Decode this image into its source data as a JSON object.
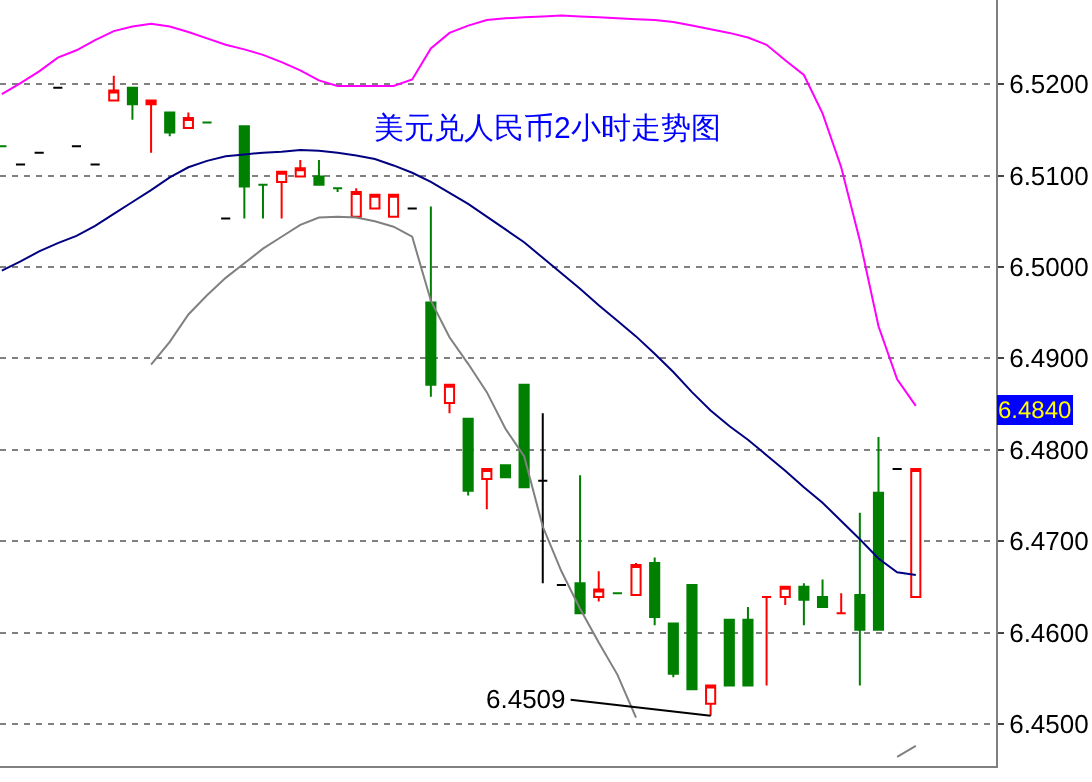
{
  "chart_data": {
    "type": "candlestick",
    "title": "美元兑人民币2小时走势图",
    "categories": [
      null,
      null,
      null,
      null,
      null,
      null,
      null,
      null,
      null,
      null,
      null,
      null,
      null,
      null,
      null,
      null,
      null,
      null,
      null,
      null,
      null,
      null,
      null,
      null,
      null,
      null,
      null,
      null,
      null,
      null,
      null,
      null,
      null,
      null,
      null,
      null,
      null,
      null,
      null,
      null,
      null,
      null,
      null,
      null,
      null,
      null,
      null,
      null,
      null,
      null
    ],
    "ohlc": [
      [
        6.5132,
        6.5132,
        6.5132,
        6.5132
      ],
      [
        6.5112,
        6.5112,
        6.5112,
        6.5112
      ],
      [
        6.5125,
        6.5125,
        6.5125,
        6.5125
      ],
      [
        6.5196,
        6.5196,
        6.5196,
        6.5196
      ],
      [
        6.5132,
        6.5132,
        6.5132,
        6.5132
      ],
      [
        6.5112,
        6.5112,
        6.5112,
        6.5112
      ],
      [
        6.5182,
        6.5209,
        6.5182,
        6.5193
      ],
      [
        6.5196,
        6.5196,
        6.5161,
        6.5178
      ],
      [
        6.5178,
        6.5182,
        6.5125,
        6.5182
      ],
      [
        6.5169,
        6.5169,
        6.5143,
        6.5147
      ],
      [
        6.5152,
        6.5169,
        6.5152,
        6.5163
      ],
      [
        6.5158,
        6.5158,
        6.5158,
        6.5158
      ],
      [
        6.5053,
        6.5053,
        6.5053,
        6.5053
      ],
      [
        6.5154,
        6.5154,
        6.5053,
        6.5088
      ],
      [
        6.509,
        6.509,
        6.5053,
        6.509
      ],
      [
        6.5093,
        6.5104,
        6.5053,
        6.5104
      ],
      [
        6.5099,
        6.5117,
        6.5099,
        6.5108
      ],
      [
        6.5099,
        6.5117,
        6.509,
        6.509
      ],
      [
        6.5086,
        6.5086,
        6.5082,
        6.5086
      ],
      [
        6.5055,
        6.5086,
        6.5055,
        6.5082
      ],
      [
        6.5064,
        6.5079,
        6.5064,
        6.5079
      ],
      [
        6.5055,
        6.5079,
        6.5055,
        6.5079
      ],
      [
        6.5064,
        6.5064,
        6.5064,
        6.5064
      ],
      [
        6.4961,
        6.5066,
        6.4858,
        6.4871
      ],
      [
        6.4851,
        6.4871,
        6.484,
        6.4871
      ],
      [
        6.4834,
        6.4834,
        6.475,
        6.4755
      ],
      [
        6.4768,
        6.4779,
        6.4735,
        6.4779
      ],
      [
        6.4783,
        6.4783,
        6.477,
        6.477
      ],
      [
        6.4871,
        6.4871,
        6.4759,
        6.4759
      ],
      [
        6.4766,
        6.484,
        6.4654,
        6.4766
      ],
      [
        6.4652,
        6.4652,
        6.4652,
        6.4652
      ],
      [
        6.4654,
        6.4772,
        6.4621,
        6.4621
      ],
      [
        6.4639,
        6.4667,
        6.4634,
        6.4647
      ],
      [
        6.4643,
        6.4643,
        6.4643,
        6.4643
      ],
      [
        6.4641,
        6.4676,
        6.4641,
        6.4674
      ],
      [
        6.4676,
        6.4682,
        6.4608,
        6.4617
      ],
      [
        6.461,
        6.461,
        6.4551,
        6.4555
      ],
      [
        6.4652,
        6.4652,
        6.4538,
        6.4538
      ],
      [
        6.4522,
        6.4542,
        6.4509,
        6.4542
      ],
      [
        6.4614,
        6.4614,
        6.4542,
        6.4542
      ],
      [
        6.4614,
        6.4628,
        6.4542,
        6.4542
      ],
      [
        6.4639,
        6.4639,
        6.4542,
        6.4639
      ],
      [
        6.4639,
        6.465,
        6.463,
        6.465
      ],
      [
        6.465,
        6.4654,
        6.4608,
        6.4636
      ],
      [
        6.4639,
        6.4658,
        6.4628,
        6.4628
      ],
      [
        6.4621,
        6.4643,
        6.4621,
        6.4621
      ],
      [
        6.4641,
        6.4731,
        6.4542,
        6.4603
      ],
      [
        6.4753,
        6.4814,
        6.4603,
        6.4603
      ],
      [
        6.4779,
        6.4779,
        6.4779,
        6.4779
      ],
      [
        6.4639,
        6.4779,
        6.4639,
        6.4779
      ]
    ],
    "colors": [
      "#008000",
      "#000000",
      "#000000",
      "#000000",
      "#000000",
      "#000000",
      "#ff0000",
      "#008000",
      "#ff0000",
      "#008000",
      "#ff0000",
      "#008000",
      "#000000",
      "#008000",
      "#008000",
      "#ff0000",
      "#ff0000",
      "#008000",
      "#008000",
      "#ff0000",
      "#ff0000",
      "#ff0000",
      "#000000",
      "#008000",
      "#ff0000",
      "#008000",
      "#ff0000",
      "#008000",
      "#008000",
      "#000000",
      "#000000",
      "#008000",
      "#ff0000",
      "#008000",
      "#ff0000",
      "#008000",
      "#008000",
      "#008000",
      "#ff0000",
      "#008000",
      "#008000",
      "#ff0000",
      "#ff0000",
      "#008000",
      "#008000",
      "#ff0000",
      "#008000",
      "#008000",
      "#000000",
      "#ff0000"
    ],
    "value_labels": [
      null,
      null,
      null,
      null,
      null,
      null,
      null,
      null,
      null,
      null,
      null,
      null,
      null,
      null,
      null,
      null,
      null,
      null,
      null,
      null,
      null,
      null,
      null,
      null,
      null,
      null,
      null,
      null,
      null,
      null,
      null,
      null,
      null,
      null,
      null,
      null,
      null,
      null,
      "6.4509",
      null,
      null,
      null,
      null,
      null,
      null,
      null,
      null,
      null,
      null,
      null
    ],
    "series": [
      {
        "type": "line",
        "color": "#ff00ff",
        "values": [
          6.5189,
          6.5201,
          6.5214,
          6.5229,
          6.5237,
          6.5248,
          6.5258,
          6.5263,
          6.5266,
          6.5263,
          6.5257,
          6.525,
          6.5243,
          6.5238,
          6.5232,
          6.5224,
          6.5215,
          6.5204,
          6.5198,
          6.5198,
          6.5198,
          6.5198,
          6.5205,
          6.5239,
          6.5256,
          6.5264,
          6.527,
          6.5272,
          6.5273,
          6.5274,
          6.5275,
          6.5274,
          6.5273,
          6.5272,
          6.5271,
          6.527,
          6.5268,
          6.5264,
          6.526,
          6.5256,
          6.5251,
          6.5243,
          6.5226,
          6.521,
          6.5168,
          6.5109,
          6.5029,
          6.4935,
          6.4877,
          6.4848
        ]
      },
      {
        "type": "line",
        "color": "#000080",
        "values": [
          6.4996,
          6.5006,
          6.5017,
          6.5026,
          6.5034,
          6.5045,
          6.5058,
          6.5071,
          6.5084,
          6.5098,
          6.5109,
          6.5116,
          6.5121,
          6.5123,
          6.5125,
          6.5126,
          6.5128,
          6.5127,
          6.5125,
          6.5122,
          6.5118,
          6.5111,
          6.5103,
          6.5093,
          6.5081,
          6.5069,
          6.5055,
          6.5041,
          6.5027,
          6.501,
          6.4993,
          6.4976,
          6.4958,
          6.4941,
          6.4924,
          6.4905,
          6.4885,
          6.4863,
          6.4843,
          6.4826,
          6.4811,
          6.4794,
          6.4777,
          6.4759,
          6.4742,
          6.4722,
          6.4702,
          6.4681,
          6.4666,
          6.4663
        ]
      },
      {
        "type": "line",
        "color": "#808080",
        "values": [
          null,
          null,
          null,
          null,
          null,
          null,
          null,
          null,
          6.4893,
          6.4918,
          6.4948,
          6.4969,
          6.4988,
          6.5004,
          6.502,
          6.5033,
          6.5046,
          6.5054,
          6.5055,
          6.5054,
          6.505,
          6.5044,
          6.5033,
          6.4963,
          6.4923,
          6.4894,
          6.4863,
          6.4823,
          6.4793,
          6.4716,
          6.4667,
          6.4626,
          6.4589,
          6.4554,
          6.4507,
          null,
          null,
          null,
          null,
          null,
          null,
          null,
          null,
          null,
          null,
          null,
          null,
          null,
          6.4464,
          6.4476
        ]
      }
    ],
    "annotations": [
      "6.4840"
    ],
    "ylim": [
      6.4454,
      6.5292
    ],
    "yticks": [
      {
        "value": 6.45,
        "label": "6.4500"
      },
      {
        "value": 6.46,
        "label": "6.4600"
      },
      {
        "value": 6.47,
        "label": "6.4700"
      },
      {
        "value": 6.48,
        "label": "6.4800"
      },
      {
        "value": 6.49,
        "label": "6.4900"
      },
      {
        "value": 6.5,
        "label": "6.5000"
      },
      {
        "value": 6.51,
        "label": "6.5100"
      },
      {
        "value": 6.52,
        "label": "6.5200"
      }
    ],
    "tick_labels": "y",
    "grid": "y"
  }
}
